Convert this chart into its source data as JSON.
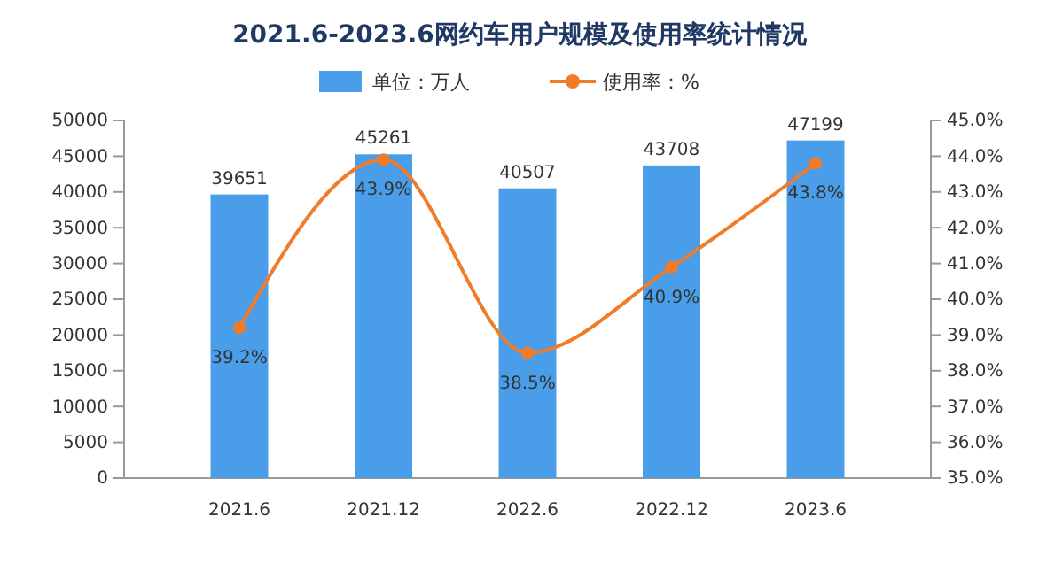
{
  "chart_data": {
    "type": "bar",
    "title": "2021.6-2023.6网约车用户规模及使用率统计情况",
    "categories": [
      "2021.6",
      "2021.12",
      "2022.6",
      "2022.12",
      "2023.6"
    ],
    "series": [
      {
        "name": "单位：万人",
        "color": "#4a9de8",
        "values": [
          39651,
          45261,
          40507,
          43708,
          47199
        ],
        "data_labels": true
      },
      {
        "name": "使用率：%",
        "type": "line",
        "axis": "y2",
        "color": "#f07c2a",
        "marker": "circle",
        "values": [
          39.2,
          43.9,
          38.5,
          40.9,
          43.8
        ],
        "value_labels": [
          "39.2%",
          "43.9%",
          "38.5%",
          "40.9%",
          "43.8%"
        ]
      }
    ],
    "ylim": [
      0,
      50000
    ],
    "yticks": [
      0,
      5000,
      10000,
      15000,
      20000,
      25000,
      30000,
      35000,
      40000,
      45000,
      50000
    ],
    "y2lim": [
      35,
      45
    ],
    "y2ticks": [
      {
        "value": 35,
        "label": "35.0%"
      },
      {
        "value": 36,
        "label": "36.0%"
      },
      {
        "value": 37,
        "label": "37.0%"
      },
      {
        "value": 38,
        "label": "38.0%"
      },
      {
        "value": 39,
        "label": "39.0%"
      },
      {
        "value": 40,
        "label": "40.0%"
      },
      {
        "value": 41,
        "label": "41.0%"
      },
      {
        "value": 42,
        "label": "42.0%"
      },
      {
        "value": 43,
        "label": "43.0%"
      },
      {
        "value": 44,
        "label": "44.0%"
      },
      {
        "value": 45,
        "label": "45.0%"
      }
    ],
    "legend": "top",
    "grid": false
  }
}
